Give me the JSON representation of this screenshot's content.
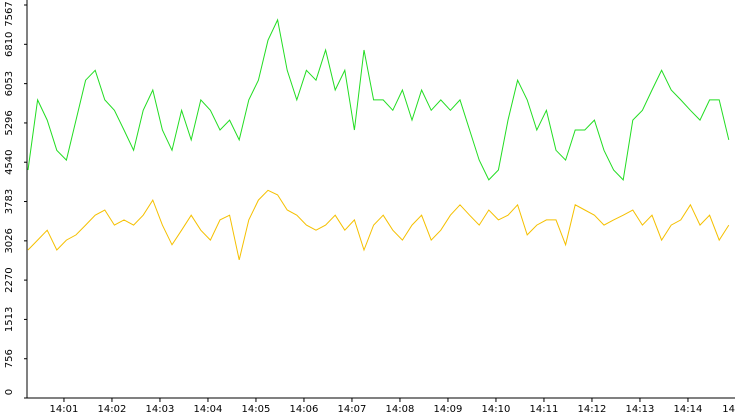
{
  "chart_data": {
    "type": "line",
    "x": [
      0.25,
      0.45,
      0.65,
      0.85,
      1.05,
      1.25,
      1.45,
      1.65,
      1.85,
      2.05,
      2.25,
      2.45,
      2.65,
      2.85,
      3.05,
      3.25,
      3.45,
      3.65,
      3.85,
      4.05,
      4.25,
      4.45,
      4.65,
      4.85,
      5.05,
      5.25,
      5.45,
      5.65,
      5.85,
      6.05,
      6.25,
      6.45,
      6.65,
      6.85,
      7.05,
      7.25,
      7.45,
      7.65,
      7.85,
      8.05,
      8.25,
      8.45,
      8.65,
      8.85,
      9.05,
      9.25,
      9.45,
      9.65,
      9.85,
      10.05,
      10.25,
      10.45,
      10.65,
      10.85,
      11.05,
      11.25,
      11.45,
      11.65,
      11.85,
      12.05,
      12.25,
      12.45,
      12.65,
      12.85,
      13.05,
      13.25,
      13.45,
      13.65,
      13.85,
      14.05,
      14.25,
      14.45,
      14.65,
      14.85
    ],
    "series": [
      {
        "color": "#22dd22",
        "values": [
          4390,
          5740,
          5350,
          4770,
          4580,
          5350,
          6120,
          6310,
          5740,
          5540,
          5160,
          4770,
          5540,
          5930,
          5160,
          4770,
          5540,
          4970,
          5740,
          5540,
          5160,
          5350,
          4970,
          5740,
          6120,
          6890,
          7280,
          6310,
          5740,
          6310,
          6120,
          6700,
          5930,
          6310,
          5160,
          6700,
          5740,
          5740,
          5540,
          5930,
          5350,
          5930,
          5540,
          5740,
          5540,
          5740,
          5160,
          4580,
          4200,
          4390,
          5350,
          6120,
          5740,
          5160,
          5540,
          4770,
          4580,
          5160,
          5160,
          5350,
          4770,
          4390,
          4200,
          5350,
          5540,
          5930,
          6310,
          5930,
          5740,
          5540,
          5350,
          5740,
          5740,
          4970
        ]
      },
      {
        "color": "#f5c000",
        "values": [
          2850,
          3040,
          3230,
          2850,
          3040,
          3140,
          3330,
          3520,
          3620,
          3330,
          3430,
          3330,
          3520,
          3810,
          3330,
          2950,
          3230,
          3520,
          3230,
          3040,
          3430,
          3520,
          2660,
          3430,
          3810,
          4000,
          3910,
          3620,
          3520,
          3330,
          3230,
          3330,
          3520,
          3230,
          3430,
          2850,
          3330,
          3520,
          3230,
          3040,
          3330,
          3520,
          3040,
          3230,
          3520,
          3720,
          3520,
          3330,
          3620,
          3430,
          3520,
          3720,
          3140,
          3330,
          3430,
          3430,
          2950,
          3720,
          3620,
          3520,
          3330,
          3430,
          3520,
          3620,
          3330,
          3520,
          3040,
          3330,
          3430,
          3720,
          3330,
          3520,
          3040,
          3330
        ]
      }
    ],
    "xlim": [
      0.23,
      14.98
    ],
    "xticks": [
      {
        "value": 1,
        "label": "14:01"
      },
      {
        "value": 2,
        "label": "14:02"
      },
      {
        "value": 3,
        "label": "14:03"
      },
      {
        "value": 4,
        "label": "14:04"
      },
      {
        "value": 5,
        "label": "14:05"
      },
      {
        "value": 6,
        "label": "14:06"
      },
      {
        "value": 7,
        "label": "14:07"
      },
      {
        "value": 8,
        "label": "14:08"
      },
      {
        "value": 9,
        "label": "14:09"
      },
      {
        "value": 10,
        "label": "14:10"
      },
      {
        "value": 11,
        "label": "14:11"
      },
      {
        "value": 12,
        "label": "14:12"
      },
      {
        "value": 13,
        "label": "14:13"
      },
      {
        "value": 14,
        "label": "14:14"
      },
      {
        "value": 15,
        "label": "14"
      }
    ],
    "ylim": [
      0,
      7567
    ],
    "yticks": [
      0,
      756,
      1513,
      2270,
      3026,
      3783,
      4540,
      5296,
      6053,
      6810,
      7567
    ]
  }
}
